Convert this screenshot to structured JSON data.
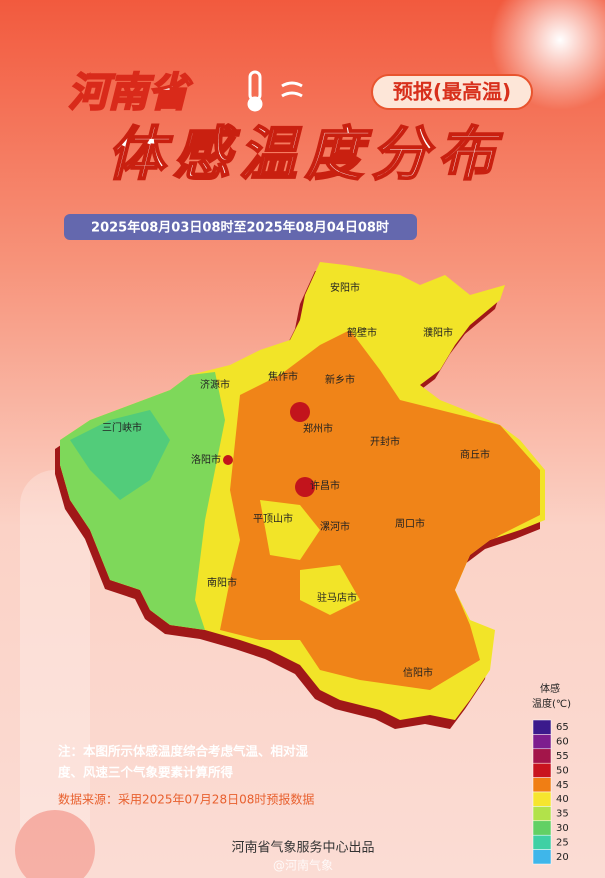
{
  "header": {
    "province": "河南省",
    "tag": "预报(最高温)",
    "title": "体感温度分布",
    "period": "2025年08月03日08时至2025年08月04日08时"
  },
  "map": {
    "cities": [
      "安阳市",
      "鹤壁市",
      "濮阳市",
      "济源市",
      "焦作市",
      "新乡市",
      "三门峡市",
      "郑州市",
      "开封市",
      "商丘市",
      "洛阳市",
      "许昌市",
      "平顶山市",
      "漯河市",
      "周口市",
      "南阳市",
      "驻马店市",
      "信阳市"
    ]
  },
  "legend": {
    "title": [
      "体感",
      "温度(℃)"
    ],
    "levels": [
      65,
      60,
      55,
      50,
      45,
      40,
      35,
      30,
      25,
      20
    ],
    "colors": [
      "#3b1a8c",
      "#7d1d8e",
      "#a3154a",
      "#c9141e",
      "#f07e14",
      "#f6e52e",
      "#b2e24a",
      "#62d064",
      "#3fd0a4",
      "#3fb6ea"
    ]
  },
  "notes": {
    "note": [
      "注：本图所示体感温度综合考虑气温、相对湿",
      "度、风速三个气象要素计算所得"
    ],
    "source": "数据来源：采用2025年07月28日08时预报数据"
  },
  "footer": {
    "publisher": "河南省气象服务中心出品",
    "watermark": "@河南气象"
  }
}
